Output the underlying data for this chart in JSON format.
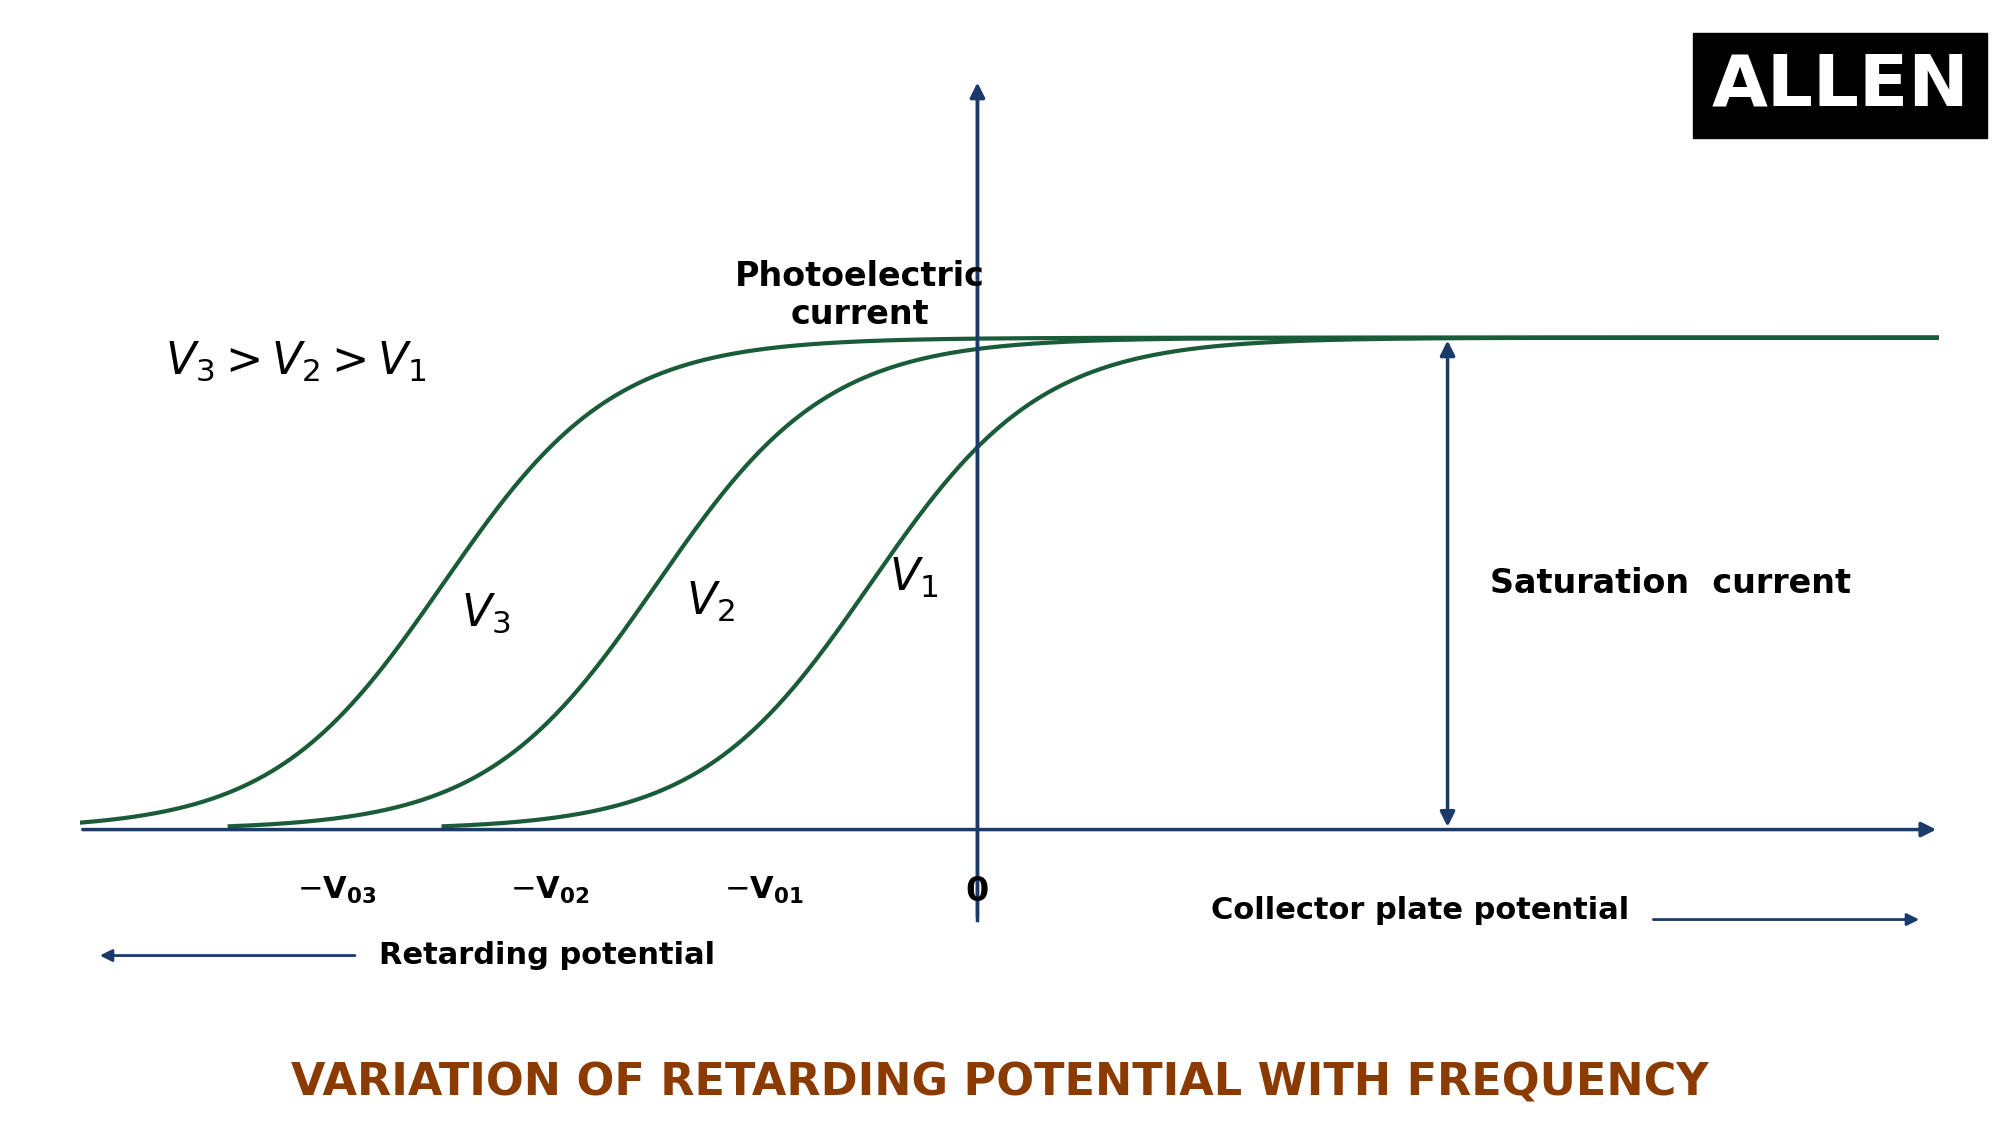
{
  "background_color": "#ffffff",
  "curve_color": "#1a5c3a",
  "axis_color": "#1a3a6b",
  "curve_linewidth": 3.0,
  "axis_linewidth": 2.5,
  "stopping_potentials": [
    -3.0,
    -2.0,
    -1.0
  ],
  "saturation_current": 0.82,
  "x_min": -4.2,
  "x_max": 4.5,
  "y_min": -0.25,
  "y_max": 1.25,
  "y_axis_x": 0.0,
  "x_axis_y": 0.0,
  "title_text": "VARIATION OF RETARDING POTENTIAL WITH FREQUENCY",
  "title_color": "#8B3A00",
  "title_fontsize": 32,
  "allen_text": "ALLEN",
  "allen_fontsize": 52,
  "y_label": "Photoelectric\ncurrent",
  "y_label_fontsize": 24,
  "x_label": "Collector plate potential",
  "x_label_fontsize": 22,
  "retarding_label": "Retarding potential",
  "retarding_fontsize": 22,
  "saturation_label": "Saturation  current",
  "saturation_fontsize": 24,
  "nu_label_fontsize": 26,
  "nu_compare_fontsize": 28,
  "tick_label_fontsize": 22,
  "zero_label": "0"
}
